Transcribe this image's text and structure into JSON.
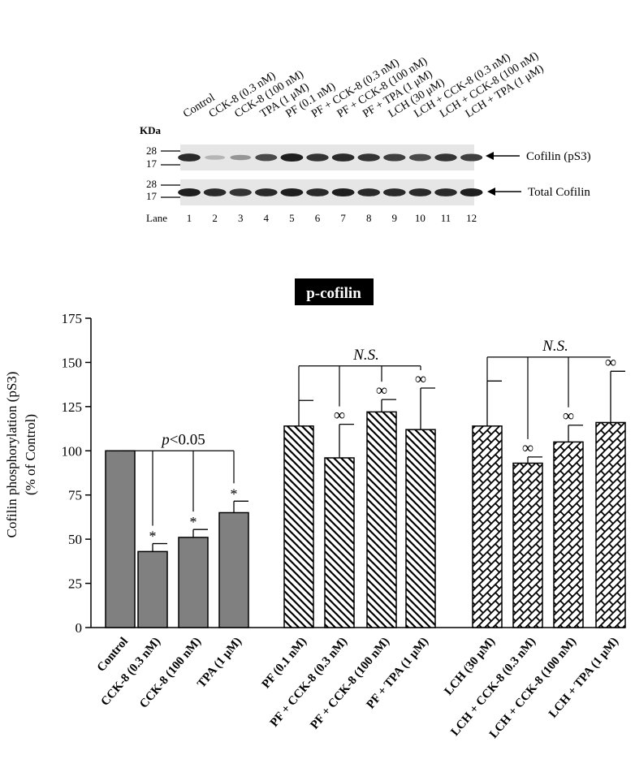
{
  "blot": {
    "lane_labels": [
      "Control",
      "CCK-8 (0.3 nM)",
      "CCK-8 (100 nM)",
      "TPA (1 μM)",
      "PF (0.1 nM)",
      "PF + CCK-8 (0.3 nM)",
      "PF + CCK-8 (100 nM)",
      "PF + TPA (1 μM)",
      "LCH (30 μM)",
      "LCH + CCK-8 (0.3 nM)",
      "LCH + CCK-8 (100 nM)",
      "LCH + TPA (1 μM)"
    ],
    "kda_label": "KDa",
    "markers": [
      "28",
      "17"
    ],
    "rows": [
      {
        "label": "Cofilin (pS3)",
        "intensities": [
          0.9,
          0.25,
          0.4,
          0.75,
          0.95,
          0.85,
          0.9,
          0.85,
          0.8,
          0.75,
          0.85,
          0.8
        ]
      },
      {
        "label": "Total Cofilin",
        "intensities": [
          0.95,
          0.9,
          0.85,
          0.9,
          0.95,
          0.9,
          0.95,
          0.9,
          0.9,
          0.9,
          0.9,
          0.95
        ]
      }
    ],
    "lane_word": "Lane",
    "lane_numbers": [
      "1",
      "2",
      "3",
      "4",
      "5",
      "6",
      "7",
      "8",
      "9",
      "10",
      "11",
      "12"
    ]
  },
  "chart_data": {
    "type": "bar",
    "title": "p-cofilin",
    "ylabel_line1": "Cofilin phosphorylation (pS3)",
    "ylabel_line2": "(% of Control)",
    "ylim": [
      0,
      175
    ],
    "yticks": [
      "0",
      "25",
      "50",
      "75",
      "100",
      "125",
      "150",
      "175"
    ],
    "categories": [
      "Control",
      "CCK-8 (0.3 nM)",
      "CCK-8 (100 nM)",
      "TPA (1 μM)",
      "PF (0.1 nM)",
      "PF + CCK-8 (0.3 nM)",
      "PF + CCK-8 (100 nM)",
      "PF + TPA (1 μM)",
      "LCH (30 μM)",
      "LCH + CCK-8 (0.3 nM)",
      "LCH + CCK-8 (100 nM)",
      "LCH + TPA (1 μM)"
    ],
    "values": [
      100,
      43,
      51,
      65,
      114,
      96,
      122,
      112,
      114,
      93,
      105,
      116
    ],
    "errors": [
      0,
      4.5,
      4.5,
      6.5,
      14.5,
      19,
      7,
      23.5,
      25.5,
      3.5,
      9.5,
      29
    ],
    "patterns": [
      "solid",
      "solid",
      "solid",
      "solid",
      "diag",
      "diag",
      "diag",
      "diag",
      "brick",
      "brick",
      "brick",
      "brick"
    ],
    "marks": [
      "",
      "*",
      "*",
      "*",
      "",
      "∞",
      "∞",
      "∞",
      "",
      "∞",
      "∞",
      "∞"
    ],
    "group_annotations": [
      {
        "text_italic": "p",
        "text_rest": "<0.05",
        "italic_all": false,
        "bars": [
          0,
          1,
          2,
          3
        ],
        "y": 100
      },
      {
        "text_italic": "N.S.",
        "text_rest": "",
        "italic_all": true,
        "bars": [
          4,
          5,
          6,
          7
        ],
        "y": 148
      },
      {
        "text_italic": "N.S.",
        "text_rest": "",
        "italic_all": true,
        "bars": [
          8,
          9,
          10,
          11
        ],
        "y": 153
      }
    ],
    "colors": {
      "bar_fill": "#808080",
      "stroke": "#000000",
      "title_bg": "#000000",
      "title_fg": "#ffffff"
    }
  }
}
